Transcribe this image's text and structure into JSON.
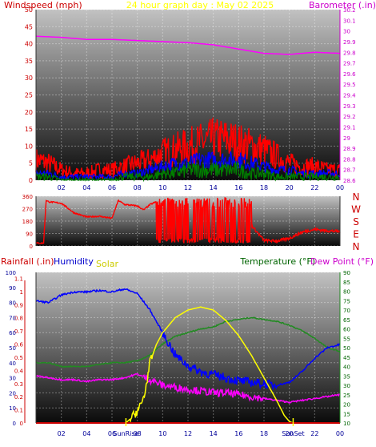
{
  "colors": {
    "wind_red": "#ff0000",
    "wind_blue": "#0000ff",
    "wind_green": "#008000",
    "barometer": "#ff00ff",
    "title": "#ffff00",
    "humidity": "#0000cc",
    "temperature": "#228b22",
    "dewpoint": "#ff00ff",
    "solar": "#ffff00",
    "rain": "#cc0000",
    "tick_left": "#cc0000",
    "tick_green": "#006400",
    "tick_blue": "#000099"
  },
  "chart_data": [
    {
      "type": "line",
      "title": "24 hour graph day : May 02 2025",
      "ylabel": "Windspeed (mph)",
      "ylabel2": "Barometer (.in)",
      "x_ticks": [
        "02",
        "04",
        "06",
        "08",
        "10",
        "12",
        "14",
        "16",
        "18",
        "20",
        "22",
        "00"
      ],
      "ylim": [
        0,
        50
      ],
      "y_ticks": [
        "0",
        "5",
        "10",
        "15",
        "20",
        "25",
        "30",
        "35",
        "40",
        "45",
        "50"
      ],
      "y2lim": [
        28.6,
        30.2
      ],
      "y2_ticks": [
        "28.6",
        "28.7",
        "28.8",
        "28.9",
        "29",
        "29.1",
        "29.2",
        "29.3",
        "29.4",
        "29.5",
        "29.6",
        "29.7",
        "29.8",
        "29.9",
        "30",
        "30.1",
        "30.2"
      ],
      "series": [
        {
          "kind": "gust",
          "hours": [
            0,
            1,
            2,
            3,
            4,
            5,
            6,
            7,
            8,
            9,
            10,
            11,
            12,
            13,
            14,
            15,
            16,
            17,
            18,
            19,
            20,
            21,
            22,
            23,
            24
          ],
          "values": [
            6,
            5,
            3,
            2,
            2,
            3,
            3,
            4,
            5,
            6,
            8,
            9,
            10,
            11,
            12,
            12,
            11,
            10,
            9,
            7,
            5,
            4,
            4,
            3,
            3
          ]
        },
        {
          "kind": "average",
          "hours": [
            0,
            1,
            2,
            3,
            4,
            5,
            6,
            7,
            8,
            9,
            10,
            11,
            12,
            13,
            14,
            15,
            16,
            17,
            18,
            19,
            20,
            21,
            22,
            23,
            24
          ],
          "values": [
            2,
            2,
            1,
            1,
            1,
            1,
            1,
            2,
            2,
            3,
            4,
            5,
            5,
            6,
            6,
            6,
            6,
            5,
            4,
            3,
            3,
            2,
            2,
            2,
            2
          ]
        },
        {
          "kind": "low",
          "hours": [
            0,
            1,
            2,
            3,
            4,
            5,
            6,
            7,
            8,
            9,
            10,
            11,
            12,
            13,
            14,
            15,
            16,
            17,
            18,
            19,
            20,
            21,
            22,
            23,
            24
          ],
          "values": [
            1,
            1,
            0,
            0,
            0,
            0,
            0,
            1,
            1,
            1,
            2,
            2,
            3,
            3,
            3,
            3,
            3,
            2,
            2,
            1,
            1,
            1,
            1,
            1,
            1
          ]
        },
        {
          "kind": "barometer",
          "hours": [
            0,
            2,
            4,
            6,
            8,
            10,
            12,
            14,
            16,
            18,
            20,
            22,
            24
          ],
          "values": [
            29.95,
            29.94,
            29.92,
            29.92,
            29.91,
            29.9,
            29.89,
            29.87,
            29.83,
            29.79,
            29.78,
            29.8,
            29.79
          ]
        }
      ]
    },
    {
      "type": "line",
      "title": "",
      "y_ticks": [
        "0",
        "90",
        "180",
        "270",
        "360"
      ],
      "compass_ticks": [
        "N",
        "E",
        "S",
        "W",
        "N"
      ],
      "ylim": [
        0,
        360
      ],
      "series": [
        {
          "kind": "direction",
          "hours": [
            0,
            0.6,
            0.8,
            1,
            2,
            3,
            4,
            5,
            6,
            6.5,
            7,
            8,
            8.5,
            9,
            9.5,
            10,
            11,
            12,
            13,
            14,
            15,
            16,
            17,
            18,
            19,
            20,
            21,
            22,
            23,
            24
          ],
          "values": [
            20,
            20,
            330,
            320,
            310,
            240,
            210,
            215,
            200,
            330,
            300,
            290,
            260,
            300,
            320,
            200,
            220,
            250,
            210,
            220,
            200,
            210,
            150,
            40,
            35,
            55,
            100,
            120,
            110,
            105
          ]
        }
      ]
    },
    {
      "type": "line",
      "title": "",
      "ylabel": "Rainfall (.in)",
      "ylabel2": "Humidity",
      "ylabel3": "Solar",
      "ylabel_right": "Temperature (°F)",
      "ylabel_right2": "Dew Point (°F)",
      "x_ticks": [
        "02",
        "04",
        "06",
        "08",
        "10",
        "12",
        "14",
        "16",
        "18",
        "20",
        "22",
        "00"
      ],
      "sunrise_label": "SunRise",
      "sunset_label": "SunSet",
      "sunrise_hour": 7.1,
      "sunset_hour": 20.3,
      "rain_ticks": [
        "0",
        "0.1",
        "0.2",
        "0.3",
        "0.4",
        "0.5",
        "0.6",
        "0.7",
        "0.8",
        "0.9",
        "1",
        "1.1"
      ],
      "humidity_ticks": [
        "0",
        "10",
        "20",
        "30",
        "40",
        "50",
        "60",
        "70",
        "80",
        "90",
        "100"
      ],
      "temp_ticks": [
        "10",
        "15",
        "20",
        "25",
        "30",
        "35",
        "40",
        "45",
        "50",
        "55",
        "60",
        "65",
        "70",
        "75",
        "80",
        "85",
        "90"
      ],
      "humidity_lim": [
        0,
        100
      ],
      "temp_lim": [
        10,
        90
      ],
      "series": [
        {
          "kind": "humidity",
          "hours": [
            0,
            1,
            2,
            3,
            4,
            5,
            6,
            7,
            8,
            9,
            10,
            11,
            12,
            13,
            14,
            15,
            16,
            17,
            18,
            19,
            20,
            21,
            22,
            23,
            24
          ],
          "values": [
            81,
            80,
            85,
            87,
            87,
            88,
            87,
            89,
            86,
            75,
            60,
            45,
            38,
            34,
            32,
            30,
            28,
            27,
            26,
            25,
            27,
            34,
            43,
            50,
            52
          ]
        },
        {
          "kind": "temperature",
          "hours": [
            0,
            1,
            2,
            3,
            4,
            5,
            6,
            7,
            8,
            9,
            10,
            11,
            12,
            13,
            14,
            15,
            16,
            17,
            18,
            19,
            20,
            21,
            22,
            23,
            24
          ],
          "values": [
            42,
            42,
            40,
            40,
            40,
            41,
            42,
            42,
            43,
            46,
            52,
            56,
            58,
            60,
            61,
            64,
            65,
            66,
            65,
            64,
            62,
            59,
            55,
            50,
            48
          ]
        },
        {
          "kind": "dewpoint",
          "hours": [
            0,
            1,
            2,
            3,
            4,
            5,
            6,
            7,
            8,
            9,
            10,
            11,
            12,
            13,
            14,
            15,
            16,
            17,
            18,
            19,
            20,
            21,
            22,
            23,
            24
          ],
          "values": [
            35,
            34,
            33,
            33,
            32,
            33,
            33,
            34,
            36,
            33,
            30,
            29,
            28,
            27,
            26,
            26,
            25,
            24,
            23,
            22,
            21,
            22,
            23,
            24,
            25
          ]
        },
        {
          "kind": "solar",
          "hours": [
            0,
            7.1,
            7.6,
            8,
            8.3,
            8.6,
            9,
            9.5,
            10,
            11,
            12,
            13,
            14,
            15,
            16,
            17,
            18,
            19,
            19.6,
            20,
            20.3,
            24
          ],
          "values": [
            0,
            0,
            4,
            8,
            12,
            20,
            40,
            52,
            60,
            70,
            75,
            77,
            75,
            68,
            58,
            45,
            30,
            15,
            5,
            1,
            0,
            0
          ]
        },
        {
          "kind": "rain",
          "hours": [
            0,
            24
          ],
          "values": [
            0,
            0
          ]
        }
      ]
    }
  ]
}
